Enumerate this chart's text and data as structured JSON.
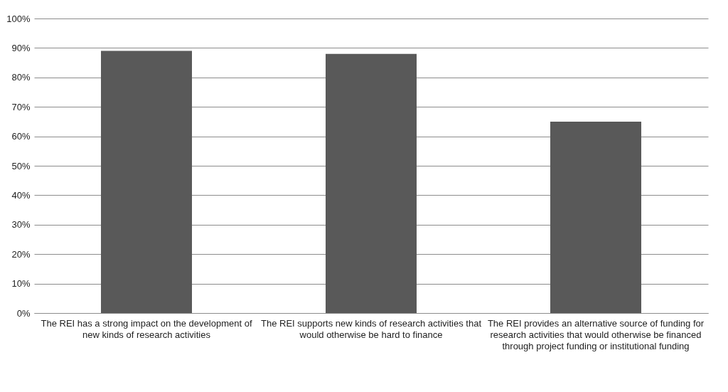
{
  "chart_data": {
    "type": "bar",
    "categories": [
      "The REI has a strong impact on the development of new kinds of research activities",
      "The REI supports new kinds of research activities that would otherwise be hard to finance",
      "The REI provides an alternative source of funding for research activities that would otherwise be financed through project funding or institutional funding"
    ],
    "values": [
      89,
      88,
      65
    ],
    "color": "#595959",
    "ylim": [
      0,
      100
    ],
    "yticks": [
      {
        "value": 0,
        "label": "0%"
      },
      {
        "value": 10,
        "label": "10%"
      },
      {
        "value": 20,
        "label": "20%"
      },
      {
        "value": 30,
        "label": "30%"
      },
      {
        "value": 40,
        "label": "40%"
      },
      {
        "value": 50,
        "label": "50%"
      },
      {
        "value": 60,
        "label": "60%"
      },
      {
        "value": 70,
        "label": "70%"
      },
      {
        "value": 80,
        "label": "80%"
      },
      {
        "value": 90,
        "label": "90%"
      },
      {
        "value": 100,
        "label": "100%"
      }
    ],
    "grid": "y"
  }
}
